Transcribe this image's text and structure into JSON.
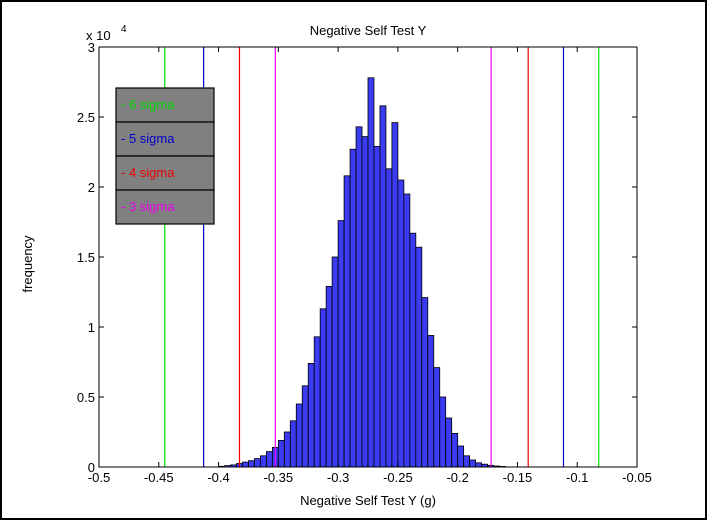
{
  "chart_data": {
    "type": "bar",
    "title": "Negative Self Test Y",
    "xlabel": "Negative Self Test Y (g)",
    "ylabel": "frequency",
    "y_exponent_label": "x 10",
    "y_exponent_power": "4",
    "xlim": [
      -0.5,
      -0.05
    ],
    "ylim": [
      0,
      30000
    ],
    "xticks": [
      -0.5,
      -0.45,
      -0.4,
      -0.35,
      -0.3,
      -0.25,
      -0.2,
      -0.15,
      -0.1,
      -0.05
    ],
    "xtick_labels": [
      "-0.5",
      "-0.45",
      "-0.4",
      "-0.35",
      "-0.3",
      "-0.25",
      "-0.2",
      "-0.15",
      "-0.1",
      "-0.05"
    ],
    "yticks": [
      0,
      5000,
      10000,
      15000,
      20000,
      25000,
      30000
    ],
    "ytick_labels": [
      "0",
      "0.5",
      "1",
      "1.5",
      "2",
      "2.5",
      "3"
    ],
    "bin_width": 0.005,
    "bin_centers": [
      -0.3975,
      -0.3925,
      -0.3875,
      -0.3825,
      -0.3775,
      -0.3725,
      -0.3675,
      -0.3625,
      -0.3575,
      -0.3525,
      -0.3475,
      -0.3425,
      -0.3375,
      -0.3325,
      -0.3275,
      -0.3225,
      -0.3175,
      -0.3125,
      -0.3075,
      -0.3025,
      -0.2975,
      -0.2925,
      -0.2875,
      -0.2825,
      -0.2775,
      -0.2725,
      -0.2675,
      -0.2625,
      -0.2575,
      -0.2525,
      -0.2475,
      -0.2425,
      -0.2375,
      -0.2325,
      -0.2275,
      -0.2225,
      -0.2175,
      -0.2125,
      -0.2075,
      -0.2025,
      -0.1975,
      -0.1925,
      -0.1875,
      -0.1825,
      -0.1775,
      -0.1725,
      -0.1675,
      -0.1625
    ],
    "values": [
      50,
      100,
      150,
      250,
      350,
      450,
      600,
      800,
      1100,
      1400,
      1900,
      2500,
      3300,
      4500,
      5800,
      7400,
      9300,
      11300,
      12900,
      15000,
      17600,
      20800,
      22700,
      24300,
      23600,
      27800,
      22900,
      25800,
      21300,
      24600,
      20500,
      19500,
      16700,
      15700,
      12100,
      9400,
      7100,
      5000,
      3500,
      2400,
      1500,
      800,
      500,
      300,
      200,
      120,
      70,
      40
    ],
    "bar_color": "#3b3bf2",
    "sigma_lines": [
      {
        "label": "6 sigma",
        "color": "#00dd00",
        "x": [
          -0.445,
          -0.082
        ]
      },
      {
        "label": "5 sigma",
        "color": "#0000cc",
        "x": [
          -0.4125,
          -0.1115
        ]
      },
      {
        "label": "4 sigma",
        "color": "#ee0000",
        "x": [
          -0.3825,
          -0.141
        ]
      },
      {
        "label": "3 sigma",
        "color": "#ee00ee",
        "x": [
          -0.3525,
          -0.172
        ]
      }
    ],
    "legend": {
      "placement": "top-left",
      "items": [
        "- 6 sigma",
        "- 5 sigma",
        "- 4 sigma",
        "- 3 sigma"
      ]
    }
  }
}
